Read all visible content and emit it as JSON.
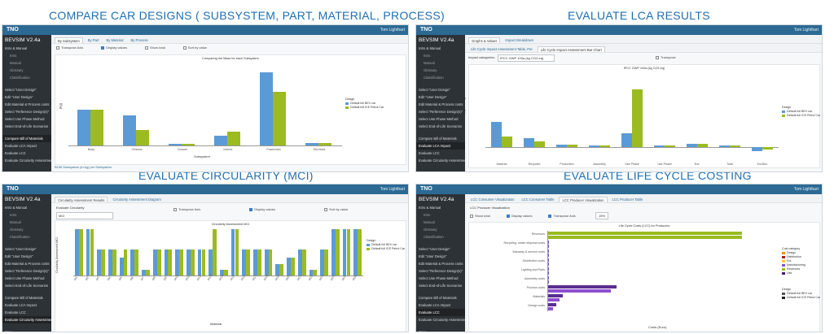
{
  "headings": {
    "compare": "COMPARE CAR DESIGNS ( SUBSYSTEM, PART, MATERIAL, PROCESS)",
    "lca": "EVALUATE LCA RESULTS",
    "mci": "EVALUATE CIRCULARITY (MCI)",
    "lcc": "EVALUATE LIFE CYCLE COSTING"
  },
  "app": {
    "logo": "TNO",
    "name": "BEVSIM V2.4a",
    "user": "Tom Lighthart"
  },
  "sidebar": {
    "items": [
      {
        "label": "Intro & Manual",
        "sub": false
      },
      {
        "label": "Intro",
        "sub": true
      },
      {
        "label": "Manual",
        "sub": true
      },
      {
        "label": "Glossary",
        "sub": true
      },
      {
        "label": "Classification",
        "sub": true
      },
      {
        "label": "",
        "sub": false
      },
      {
        "label": "Select \"User Design\"",
        "sub": false
      },
      {
        "label": "Edit \"User Design\"",
        "sub": false
      },
      {
        "label": "Edit Material & Process costs",
        "sub": false
      },
      {
        "label": "Select \"Reference Design(s)\"",
        "sub": false
      },
      {
        "label": "Select Use Phase Method",
        "sub": false
      },
      {
        "label": "Select End-of-Life Scenarios",
        "sub": false
      },
      {
        "label": "",
        "sub": false
      },
      {
        "label": "Compare Bill of Materials",
        "sub": false
      },
      {
        "label": "Evaluate LCA Impact",
        "sub": false
      },
      {
        "label": "Evaluate LCC",
        "sub": false
      },
      {
        "label": "Evaluate Circularity Assessment",
        "sub": false
      },
      {
        "label": "",
        "sub": false
      },
      {
        "label": "Save",
        "sub": false
      }
    ]
  },
  "panel_compare": {
    "tabs": [
      "By Subsystem",
      "By Part",
      "By Material",
      "By Process"
    ],
    "options": [
      "Transpose Axis",
      "Display values",
      "Show total",
      "Sort by value"
    ],
    "chart_title": "Comparing the Mass for each Subsystem",
    "footer_link": "BOM Subsystem (in kg) per Subsystem",
    "legend_title": "Design",
    "series_colors": [
      "#5b9bd5",
      "#9bbb20"
    ]
  },
  "panel_lca": {
    "tabs": [
      "Graphs & Values",
      "Impact Breakdown"
    ],
    "subtabs": [
      "Life Cycle Impact Assessment Table, Per",
      "Life Cycle Impact Assessment Bar Chart"
    ],
    "impact_label": "Impact categories:",
    "impact_value": "IPCC GWP 100a (kg CO2-eq)",
    "transpose": "Transpose"
  },
  "panel_mci": {
    "tabs": [
      "Circularity Assessment Results",
      "Circularity Assessment Diagram"
    ],
    "evaluate_label": "Evaluate Circularity",
    "select_value": "MCI",
    "options": [
      "Transpose Axis",
      "Display values",
      "Sort by value"
    ],
    "chart_title": "Circularity Assessment MCI"
  },
  "panel_lcc": {
    "tabs": [
      "LCC Consumer Visualization",
      "LCC Consumer Table",
      "LCC Producer Visualization",
      "LCC Producer Table"
    ],
    "section": "LCC Producer Visualization",
    "options": [
      "Show total",
      "Display values",
      "Transpose Axis"
    ],
    "value_box": "15%",
    "chart_title": "Life Cycle Costs (LCC) for Producers",
    "legend_cat_title": "Cost category",
    "legend_cats": [
      "Design",
      "Distribution",
      "EoL",
      "Manufacturing",
      "Revenues",
      "Use"
    ],
    "legend_cat_colors": [
      "#ff8f00",
      "#b71c1c",
      "#ffca28",
      "#7e57c2",
      "#9bbb20",
      "#4a148c"
    ]
  },
  "chart_data": [
    {
      "type": "bar",
      "title": "Comparing the Mass for each Subsystem",
      "xlabel": "Subsystem",
      "ylabel": "[kg]",
      "categories": [
        "Body",
        "Chassis",
        "Closure",
        "Interior",
        "Powertrain",
        "Electrical"
      ],
      "series": [
        {
          "name": "Default full BEV car",
          "values": [
            400,
            335,
            20,
            110,
            810,
            25
          ]
        },
        {
          "name": "Default full ICE Petrol Car",
          "values": [
            400,
            175,
            20,
            150,
            590,
            25
          ]
        }
      ],
      "ylim": [
        0,
        900
      ]
    },
    {
      "type": "bar",
      "title": "IPCC GWP 100a (kg CO2-eq)",
      "ylabel": "IPCC GWP 100a (kg CO2-eq)",
      "categories": [
        "Material",
        "Recycled",
        "Production",
        "Assembly",
        "Use Phase",
        "Use Phase",
        "EoL",
        "Total",
        "EoLBen"
      ],
      "series": [
        {
          "name": "Default full BEV car",
          "values": [
            4800,
            1700,
            400,
            300,
            2700,
            280,
            600,
            360,
            -700
          ]
        },
        {
          "name": "Default full ICE Petrol Car",
          "values": [
            2000,
            1100,
            400,
            300,
            11000,
            280,
            600,
            260,
            -500
          ]
        }
      ],
      "ylim": [
        -2000,
        14000
      ]
    },
    {
      "type": "bar",
      "title": "Circularity Assessment MCI",
      "xlabel": "Material",
      "ylabel": "Circularity Assessment MCI",
      "categories": [
        "M1",
        "M2",
        "M3",
        "M4",
        "M5",
        "M6",
        "M7",
        "M8",
        "M9",
        "M10",
        "M11",
        "M12",
        "M13",
        "M14",
        "M15",
        "M16",
        "M17",
        "M18",
        "M19",
        "M20",
        "M21",
        "M22",
        "M23",
        "M24",
        "M25",
        "M26"
      ],
      "series": [
        {
          "name": "Default full BEV car",
          "values": [
            0.98,
            0.98,
            0.56,
            0.56,
            0.38,
            0.56,
            0.12,
            0.56,
            0.56,
            0.56,
            0.56,
            0.56,
            0.56,
            0.12,
            0.98,
            0.56,
            0.56,
            0.56,
            0.25,
            0.38,
            0.56,
            0.12,
            0.56,
            0.98,
            0.98,
            0.98
          ]
        },
        {
          "name": "Default full ICE Petrol Car",
          "values": [
            0.98,
            0.98,
            0.56,
            0.56,
            0.56,
            0.56,
            0.12,
            0.56,
            0.56,
            0.56,
            0.56,
            0.56,
            0.98,
            0.12,
            0.98,
            0.56,
            0.56,
            0.56,
            0.25,
            0.38,
            0.56,
            0.12,
            0.56,
            0.98,
            0.98,
            0.98
          ]
        }
      ],
      "ylim": [
        0,
        1
      ]
    },
    {
      "type": "bar",
      "title": "Life Cycle Costs (LCC) for Producers",
      "xlabel": "Costs (Euro)",
      "categories": [
        "Revenues",
        "Recycling, waste disposal costs",
        "Warranty & service costs",
        "Distribution costs",
        "Lighting and Parts",
        "Assembly costs",
        "Process costs",
        "Materials",
        "Design costs"
      ],
      "series": [
        {
          "name": "Default full BEV car",
          "values": [
            34000,
            200,
            150,
            100,
            80,
            100,
            12000,
            2500,
            1400
          ]
        },
        {
          "name": "Default full ICE Petrol Car",
          "values": [
            34000,
            200,
            150,
            100,
            80,
            100,
            11000,
            2000,
            900
          ]
        }
      ],
      "xlim": [
        0,
        40000
      ]
    }
  ]
}
